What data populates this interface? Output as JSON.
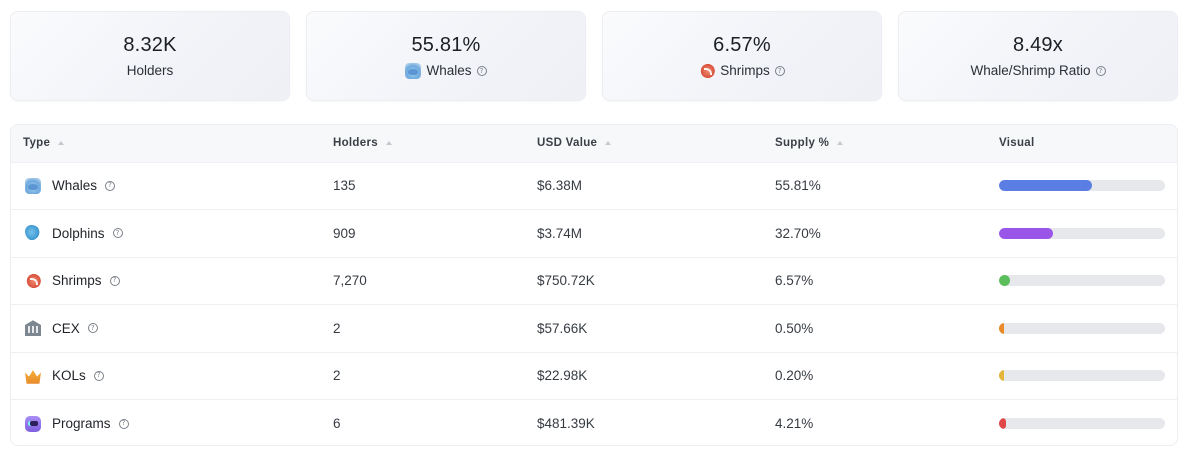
{
  "summary_cards": [
    {
      "id": "holders",
      "value": "8.32K",
      "label": "Holders",
      "icon": "",
      "help": false
    },
    {
      "id": "whales",
      "value": "55.81%",
      "label": "Whales",
      "icon": "whale-icon",
      "help": true
    },
    {
      "id": "shrimps",
      "value": "6.57%",
      "label": "Shrimps",
      "icon": "shrimp-icon",
      "help": true
    },
    {
      "id": "ratio",
      "value": "8.49x",
      "label": "Whale/Shrimp Ratio",
      "icon": "",
      "help": true
    }
  ],
  "table": {
    "headers": {
      "type": "Type",
      "holders": "Holders",
      "usd_value": "USD Value",
      "supply": "Supply %",
      "visual": "Visual"
    },
    "rows": [
      {
        "type": "Whales",
        "icon": "whale-icon",
        "holders": "135",
        "usd_value": "$6.38M",
        "supply": "55.81%",
        "bar_fraction": 0.5581,
        "bar_color": "#5b7ee5"
      },
      {
        "type": "Dolphins",
        "icon": "dolphin-icon",
        "holders": "909",
        "usd_value": "$3.74M",
        "supply": "32.70%",
        "bar_fraction": 0.327,
        "bar_color": "#9a56e8"
      },
      {
        "type": "Shrimps",
        "icon": "shrimp-icon",
        "holders": "7,270",
        "usd_value": "$750.72K",
        "supply": "6.57%",
        "bar_fraction": 0.0657,
        "bar_color": "#5cbd5c"
      },
      {
        "type": "CEX",
        "icon": "bank-icon",
        "holders": "2",
        "usd_value": "$57.66K",
        "supply": "0.50%",
        "bar_fraction": 0.005,
        "bar_color": "#e98a2a"
      },
      {
        "type": "KOLs",
        "icon": "crown-icon",
        "holders": "2",
        "usd_value": "$22.98K",
        "supply": "0.20%",
        "bar_fraction": 0.002,
        "bar_color": "#e3b53a"
      },
      {
        "type": "Programs",
        "icon": "robot-icon",
        "holders": "6",
        "usd_value": "$481.39K",
        "supply": "4.21%",
        "bar_fraction": 0.0421,
        "bar_color": "#e04848"
      }
    ]
  }
}
